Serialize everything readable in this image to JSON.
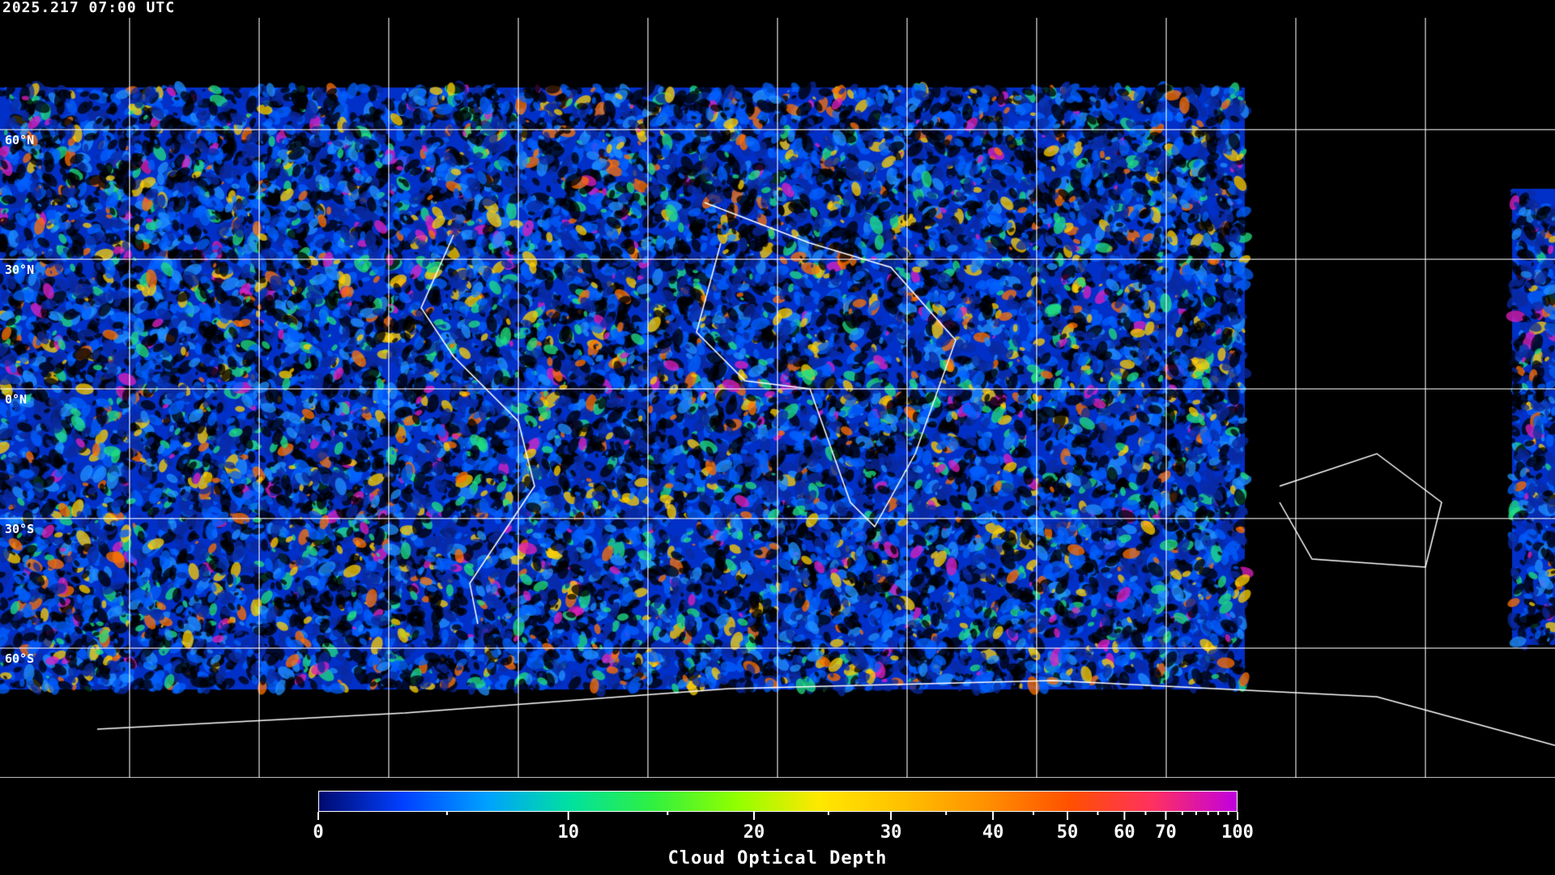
{
  "timestamp": "2025.217 07:00 UTC",
  "latitude_labels": [
    "60°N",
    "30°N",
    "0°N",
    "30°S",
    "60°S"
  ],
  "colorbar": {
    "title": "Cloud Optical Depth",
    "tick_labels": [
      "0",
      "10",
      "20",
      "30",
      "40",
      "50",
      "60",
      "70",
      "100"
    ],
    "range": [
      0,
      100
    ],
    "colors": [
      "#000a6e",
      "#0040ff",
      "#00a0ff",
      "#00e0a0",
      "#30f040",
      "#90ff00",
      "#ffe800",
      "#ffc000",
      "#ff9000",
      "#ff5000",
      "#ff3060",
      "#c000e0"
    ]
  },
  "map": {
    "projection": "equirectangular",
    "gridlines": "every 30 degrees",
    "background": "#000000",
    "coastline_color": "#ffffff",
    "grid_color": "#ffffff"
  }
}
